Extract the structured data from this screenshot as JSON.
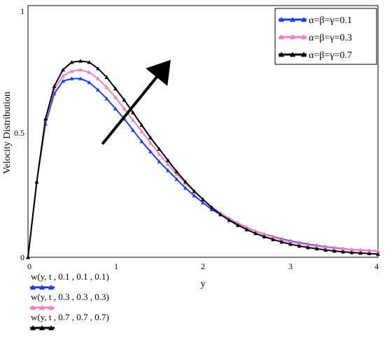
{
  "chart_data": {
    "type": "line",
    "xlabel": "y",
    "ylabel": "Velocity Distribution",
    "xlim": [
      0,
      4
    ],
    "ylim": [
      0,
      1
    ],
    "xticks": [
      "0",
      "1",
      "2",
      "3",
      "4"
    ],
    "yticks": [
      "0",
      "0.5",
      "1"
    ],
    "legend_position": "top-right",
    "grid": false,
    "x": [
      0,
      0.1,
      0.2,
      0.3,
      0.4,
      0.5,
      0.6,
      0.7,
      0.8,
      0.9,
      1.0,
      1.1,
      1.2,
      1.3,
      1.4,
      1.5,
      1.6,
      1.7,
      1.8,
      1.9,
      2.0,
      2.1,
      2.2,
      2.3,
      2.4,
      2.5,
      2.6,
      2.7,
      2.8,
      2.9,
      3.0,
      3.1,
      3.2,
      3.3,
      3.4,
      3.5,
      3.6,
      3.7,
      3.8,
      3.9,
      4.0
    ],
    "series": [
      {
        "name": "α=β=γ=0.1",
        "color": "#1f3fe0",
        "marker": "triangle",
        "values": [
          0.0,
          0.3,
          0.53,
          0.65,
          0.7,
          0.71,
          0.71,
          0.695,
          0.665,
          0.63,
          0.59,
          0.55,
          0.505,
          0.46,
          0.42,
          0.38,
          0.345,
          0.31,
          0.275,
          0.245,
          0.217,
          0.19,
          0.17,
          0.15,
          0.133,
          0.118,
          0.104,
          0.092,
          0.082,
          0.073,
          0.065,
          0.058,
          0.052,
          0.047,
          0.042,
          0.038,
          0.034,
          0.031,
          0.029,
          0.027,
          0.025
        ]
      },
      {
        "name": "α=β=γ=0.3",
        "color": "#f080c0",
        "marker": "triangle",
        "values": [
          0.0,
          0.3,
          0.54,
          0.67,
          0.72,
          0.74,
          0.745,
          0.735,
          0.71,
          0.675,
          0.635,
          0.59,
          0.545,
          0.5,
          0.455,
          0.41,
          0.37,
          0.33,
          0.295,
          0.26,
          0.23,
          0.2,
          0.176,
          0.155,
          0.136,
          0.119,
          0.104,
          0.091,
          0.08,
          0.07,
          0.062,
          0.055,
          0.049,
          0.044,
          0.04,
          0.036,
          0.033,
          0.031,
          0.029,
          0.027,
          0.025
        ]
      },
      {
        "name": "α=β=γ=0.7",
        "color": "#000000",
        "marker": "triangle",
        "values": [
          0.0,
          0.3,
          0.55,
          0.68,
          0.745,
          0.775,
          0.78,
          0.775,
          0.75,
          0.715,
          0.67,
          0.625,
          0.575,
          0.525,
          0.475,
          0.43,
          0.385,
          0.34,
          0.3,
          0.263,
          0.23,
          0.198,
          0.17,
          0.147,
          0.127,
          0.11,
          0.095,
          0.082,
          0.071,
          0.061,
          0.052,
          0.045,
          0.039,
          0.034,
          0.029,
          0.025,
          0.022,
          0.019,
          0.017,
          0.015,
          0.013
        ]
      }
    ],
    "annotation": {
      "type": "arrow",
      "from": [
        0.85,
        0.45
      ],
      "to": [
        1.55,
        0.75
      ],
      "color": "#000000"
    },
    "function_labels": [
      {
        "text": "w(y, t , 0.1 , 0.1 , 0.1)",
        "color": "#1f3fe0"
      },
      {
        "text": "w(y, t , 0.3 , 0.3 , 0.3)",
        "color": "#f080c0"
      },
      {
        "text": "w(y, t , 0.7 , 0.7 , 0.7)",
        "color": "#000000"
      }
    ]
  }
}
